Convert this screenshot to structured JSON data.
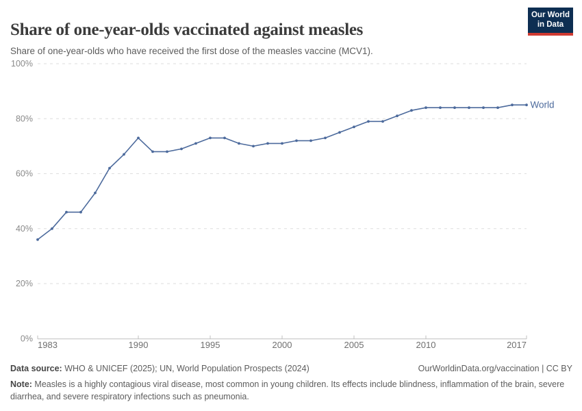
{
  "header": {
    "title": "Share of one-year-olds vaccinated against measles",
    "subtitle": "Share of one-year-olds who have received the first dose of the measles vaccine (MCV1).",
    "logo": {
      "line1": "Our World",
      "line2": "in Data"
    }
  },
  "chart_data": {
    "type": "line",
    "title": "Share of one-year-olds vaccinated against measles",
    "xlabel": "",
    "ylabel": "",
    "xlim": [
      1983,
      2017
    ],
    "ylim": [
      0,
      100
    ],
    "x_ticks": [
      1983,
      1990,
      1995,
      2000,
      2005,
      2010,
      2017
    ],
    "y_ticks": [
      0,
      20,
      40,
      60,
      80,
      100
    ],
    "y_tick_suffix": "%",
    "grid": "horizontal-dashed",
    "legend_position": "end-of-line-label",
    "series": [
      {
        "name": "World",
        "color": "#4c6a9c",
        "x": [
          1983,
          1984,
          1985,
          1986,
          1987,
          1988,
          1989,
          1990,
          1991,
          1992,
          1993,
          1994,
          1995,
          1996,
          1997,
          1998,
          1999,
          2000,
          2001,
          2002,
          2003,
          2004,
          2005,
          2006,
          2007,
          2008,
          2009,
          2010,
          2011,
          2012,
          2013,
          2014,
          2015,
          2016,
          2017
        ],
        "values": [
          36,
          40,
          46,
          46,
          53,
          62,
          67,
          73,
          68,
          68,
          69,
          71,
          73,
          73,
          71,
          70,
          71,
          71,
          72,
          72,
          73,
          75,
          77,
          79,
          79,
          81,
          83,
          84,
          84,
          84,
          84,
          84,
          84,
          85,
          85
        ]
      }
    ]
  },
  "footer": {
    "source_label": "Data source:",
    "source_text": " WHO & UNICEF (2025); UN, World Population Prospects (2024)",
    "license_text": "OurWorldinData.org/vaccination | CC BY",
    "note_label": "Note:",
    "note_text": " Measles is a highly contagious viral disease, most common in young children. Its effects include blindness, inflammation of the brain, severe diarrhea, and severe respiratory infections such as pneumonia."
  },
  "colors": {
    "line": "#4c6a9c",
    "grid": "#dedede",
    "axis": "#bfbfbf",
    "logo_bg": "#0d2e52",
    "logo_red": "#cf3a31",
    "title_text": "#3b3b3b",
    "muted_text": "#5c5c5c"
  }
}
